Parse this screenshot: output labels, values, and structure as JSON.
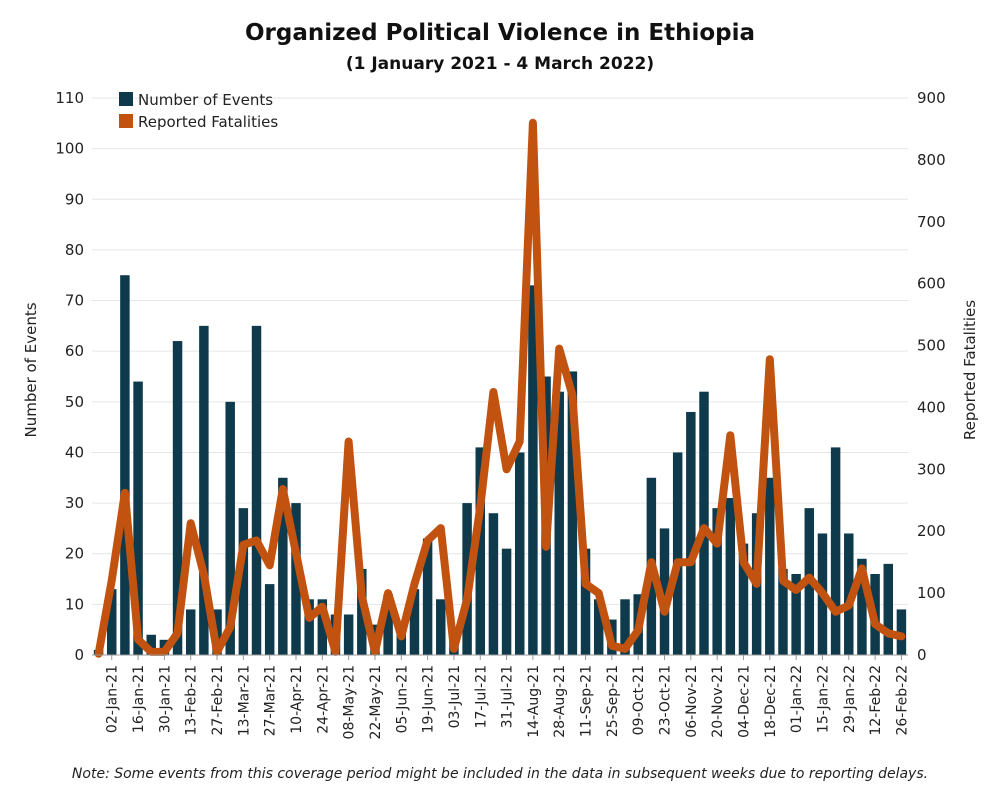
{
  "chart_data": {
    "type": "bar+line",
    "title": "Organized Political Violence in Ethiopia",
    "subtitle": "(1 January 2021 - 4 March 2022)",
    "ylabel_left": "Number of Events",
    "ylabel_right": "Reported Fatalities",
    "ylim_left": [
      0,
      110
    ],
    "ylim_right": [
      0,
      900
    ],
    "yticks_left": [
      "0",
      "10",
      "20",
      "30",
      "40",
      "50",
      "60",
      "70",
      "80",
      "90",
      "100",
      "110"
    ],
    "yticks_right": [
      "0",
      "100",
      "200",
      "300",
      "400",
      "500",
      "600",
      "700",
      "800",
      "900"
    ],
    "legend_position": "top-left",
    "x_tick_labels": [
      "02-Jan-21",
      "16-Jan-21",
      "30-Jan-21",
      "13-Feb-21",
      "27-Feb-21",
      "13-Mar-21",
      "27-Mar-21",
      "10-Apr-21",
      "24-Apr-21",
      "08-May-21",
      "22-May-21",
      "05-Jun-21",
      "19-Jun-21",
      "03-Jul-21",
      "17-Jul-21",
      "31-Jul-21",
      "14-Aug-21",
      "28-Aug-21",
      "11-Sep-21",
      "25-Sep-21",
      "09-Oct-21",
      "23-Oct-21",
      "06-Nov-21",
      "20-Nov-21",
      "04-Dec-21",
      "18-Dec-21",
      "01-Jan-22",
      "15-Jan-22",
      "29-Jan-22",
      "12-Feb-22",
      "26-Feb-22"
    ],
    "series": [
      {
        "name": "Number of Events",
        "kind": "bar",
        "axis": "left",
        "color": "#0e3a4c",
        "values": [
          1,
          13,
          75,
          54,
          4,
          3,
          62,
          9,
          65,
          9,
          50,
          29,
          65,
          14,
          35,
          30,
          11,
          11,
          8,
          8,
          17,
          6,
          12,
          4,
          13,
          23,
          11,
          4,
          30,
          41,
          28,
          21,
          40,
          73,
          55,
          52,
          56,
          21,
          11,
          7,
          11,
          12,
          35,
          25,
          40,
          48,
          52,
          29,
          31,
          22,
          28,
          35,
          17,
          16,
          29,
          24,
          41,
          24,
          19,
          16,
          18,
          9
        ]
      },
      {
        "name": "Reported Fatalities",
        "kind": "line",
        "axis": "right",
        "color": "#c1520f",
        "values": [
          2,
          120,
          262,
          25,
          5,
          5,
          35,
          213,
          130,
          5,
          45,
          178,
          185,
          145,
          268,
          165,
          60,
          78,
          5,
          345,
          95,
          5,
          100,
          30,
          115,
          185,
          205,
          10,
          90,
          240,
          425,
          300,
          345,
          860,
          175,
          495,
          420,
          115,
          100,
          15,
          10,
          40,
          150,
          70,
          150,
          150,
          205,
          180,
          355,
          150,
          115,
          478,
          120,
          105,
          125,
          100,
          70,
          80,
          140,
          50,
          35,
          30
        ]
      }
    ]
  },
  "note": "Note: Some events from this coverage period might be included in the data in subsequent weeks due to reporting delays."
}
